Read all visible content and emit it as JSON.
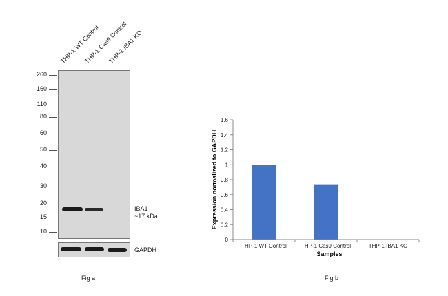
{
  "blot": {
    "lanes": [
      "THP-1 WT Control",
      "THP-1 Cas9 Control",
      "THP-1 IBA1 KO"
    ],
    "mw_markers": [
      "260",
      "160",
      "110",
      "80",
      "60",
      "50",
      "40",
      "30",
      "20",
      "15",
      "10"
    ],
    "target_label": "IBA1",
    "target_size": "~17 kDa",
    "loading_control": "GAPDH",
    "caption": "Fig a"
  },
  "chart_data": {
    "type": "bar",
    "categories": [
      "THP-1 WT Control",
      "THP-1 Cas9 Control",
      "THP-1 IBA1 KO"
    ],
    "values": [
      1.0,
      0.73,
      0.0
    ],
    "xlabel": "Samples",
    "ylabel": "Expression normalized to GAPDH",
    "ylim": [
      0,
      1.6
    ],
    "yticks": [
      "0",
      "0.2",
      "0.4",
      "0.6",
      "0.8",
      "1",
      "1.2",
      "1.4",
      "1.6"
    ],
    "bar_color": "#4472c4",
    "caption": "Fig b"
  }
}
